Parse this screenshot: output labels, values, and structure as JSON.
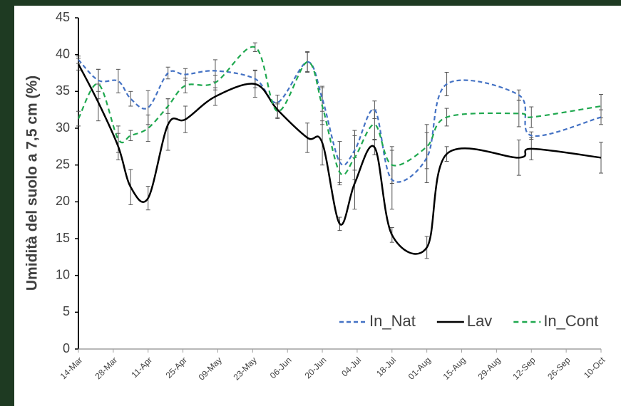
{
  "chart_data": {
    "type": "line",
    "y_label": "Umidità del suolo a 7,5 cm (%)",
    "x": [
      0,
      8,
      16,
      21,
      28,
      36,
      43,
      55,
      71,
      80,
      92,
      98,
      105,
      111,
      119,
      126,
      140,
      148,
      177,
      182,
      210
    ],
    "xlim": [
      0,
      210
    ],
    "xticks": [
      {
        "value": 0,
        "label": "14-Mar"
      },
      {
        "value": 14,
        "label": "28-Mar"
      },
      {
        "value": 28,
        "label": "11-Apr"
      },
      {
        "value": 42,
        "label": "25-Apr"
      },
      {
        "value": 56,
        "label": "09-May"
      },
      {
        "value": 70,
        "label": "23-May"
      },
      {
        "value": 84,
        "label": "06-Jun"
      },
      {
        "value": 98,
        "label": "20-Jun"
      },
      {
        "value": 112,
        "label": "04-Jul"
      },
      {
        "value": 126,
        "label": "18-Jul"
      },
      {
        "value": 140,
        "label": "01-Aug"
      },
      {
        "value": 154,
        "label": "15-Aug"
      },
      {
        "value": 168,
        "label": "29-Aug"
      },
      {
        "value": 182,
        "label": "12-Sep"
      },
      {
        "value": 196,
        "label": "26-Sep"
      },
      {
        "value": 210,
        "label": "10-Oct"
      }
    ],
    "ylim": [
      0,
      45
    ],
    "yticks": [
      0,
      5,
      10,
      15,
      20,
      25,
      30,
      35,
      40,
      45
    ],
    "legend": "lower right",
    "series": [
      {
        "name": "In_Nat",
        "color": "#4472c4",
        "dash": "6,4",
        "values": [
          39.3,
          36.5,
          36.4,
          34,
          32.8,
          37.5,
          37.3,
          37.8,
          36.7,
          33.5,
          39,
          34,
          25.4,
          27,
          32.5,
          23,
          26,
          36,
          34.5,
          29,
          31.5
        ],
        "errors": [
          0.5,
          1.5,
          1.6,
          1,
          2.3,
          0.8,
          0.8,
          1.5,
          1.2,
          1,
          1.4,
          1.7,
          2.8,
          2.7,
          1.2,
          4,
          3.4,
          1.6,
          0.7,
          0.5,
          1
        ]
      },
      {
        "name": "Lav",
        "color": "#000000",
        "dash": "none",
        "values": [
          38.7,
          33.5,
          27.5,
          22,
          20.5,
          30.5,
          31.2,
          34.3,
          36,
          32.5,
          28.7,
          28,
          17,
          22.5,
          27.4,
          15.5,
          13.8,
          26.5,
          26,
          27.2,
          26
        ],
        "errors": [
          0.8,
          2.5,
          1.8,
          2.4,
          1.6,
          3.5,
          1.8,
          1.2,
          1.8,
          1,
          2,
          3,
          0.9,
          3.5,
          1,
          1,
          1.5,
          1,
          2.4,
          1.5,
          2.1
        ]
      },
      {
        "name": "In_Cont",
        "color": "#1fa84f",
        "dash": "7,5",
        "values": [
          31.3,
          36,
          28.5,
          29,
          30,
          33,
          35.8,
          36.2,
          41,
          32.3,
          39,
          33,
          24,
          26,
          30.5,
          25,
          27.5,
          31.5,
          32,
          31.5,
          33
        ],
        "errors": [
          1,
          2,
          1.8,
          0.7,
          1.8,
          1,
          1,
          1,
          0.6,
          1,
          1.3,
          2.5,
          1.7,
          3,
          2,
          2.5,
          3,
          1.2,
          1.8,
          1.4,
          1.6
        ]
      }
    ]
  }
}
